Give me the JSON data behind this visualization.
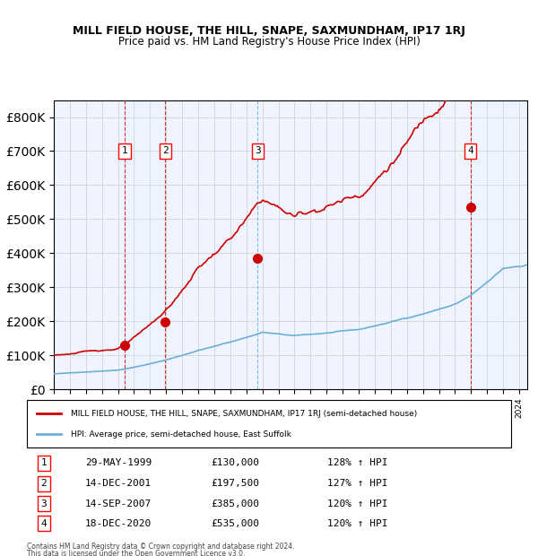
{
  "title": "MILL FIELD HOUSE, THE HILL, SNAPE, SAXMUNDHAM, IP17 1RJ",
  "subtitle": "Price paid vs. HM Land Registry's House Price Index (HPI)",
  "legend_line1": "MILL FIELD HOUSE, THE HILL, SNAPE, SAXMUNDHAM, IP17 1RJ (semi-detached house)",
  "legend_line2": "HPI: Average price, semi-detached house, East Suffolk",
  "footnote1": "Contains HM Land Registry data © Crown copyright and database right 2024.",
  "footnote2": "This data is licensed under the Open Government Licence v3.0.",
  "sales": [
    {
      "label": "1",
      "date": "29-MAY-1999",
      "price": 130000,
      "hpi_pct": "128% ↑ HPI",
      "year": 1999.41
    },
    {
      "label": "2",
      "date": "14-DEC-2001",
      "price": 197500,
      "hpi_pct": "127% ↑ HPI",
      "year": 2001.95
    },
    {
      "label": "3",
      "date": "14-SEP-2007",
      "price": 385000,
      "hpi_pct": "120% ↑ HPI",
      "year": 2007.71
    },
    {
      "label": "4",
      "date": "18-DEC-2020",
      "price": 535000,
      "hpi_pct": "120% ↑ HPI",
      "year": 2020.96
    }
  ],
  "hpi_color": "#6baed6",
  "price_color": "#cc0000",
  "vline_color": "#cc0000",
  "vline3_color": "#6baed6",
  "shading_color": "#ddeeff",
  "background_color": "#ffffff",
  "grid_color": "#cccccc",
  "ylim": [
    0,
    850000
  ],
  "xlim_start": 1995.0,
  "xlim_end": 2024.5
}
